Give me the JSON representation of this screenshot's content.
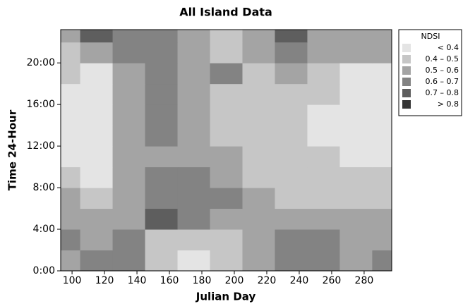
{
  "chart_data": {
    "type": "contour",
    "title": "All Island Data",
    "x_label": "Julian Day",
    "y_label": "Time 24-Hour",
    "xlim": [
      93,
      297
    ],
    "xticks": [
      100,
      120,
      140,
      160,
      180,
      200,
      220,
      240,
      260,
      280
    ],
    "ylim": [
      0,
      23.2
    ],
    "yticks": [
      {
        "value": 0,
        "label": "0:00"
      },
      {
        "value": 4,
        "label": "4:00"
      },
      {
        "value": 8,
        "label": "8:00"
      },
      {
        "value": 12,
        "label": "12:00"
      },
      {
        "value": 16,
        "label": "16:00"
      },
      {
        "value": 20,
        "label": "20:00"
      }
    ],
    "x": [
      95,
      115,
      135,
      155,
      175,
      195,
      215,
      235,
      255,
      275,
      295
    ],
    "y": [
      1,
      3,
      5,
      7,
      9,
      11,
      13,
      15,
      17,
      19,
      21,
      23
    ],
    "z": [
      [
        0.55,
        0.65,
        0.65,
        0.45,
        0.35,
        0.45,
        0.55,
        0.65,
        0.65,
        0.55,
        0.65
      ],
      [
        0.65,
        0.55,
        0.65,
        0.45,
        0.45,
        0.45,
        0.55,
        0.65,
        0.65,
        0.55,
        0.55
      ],
      [
        0.55,
        0.55,
        0.55,
        0.75,
        0.65,
        0.55,
        0.55,
        0.55,
        0.55,
        0.55,
        0.55
      ],
      [
        0.55,
        0.45,
        0.55,
        0.65,
        0.65,
        0.65,
        0.55,
        0.45,
        0.45,
        0.45,
        0.45
      ],
      [
        0.45,
        0.35,
        0.55,
        0.65,
        0.65,
        0.55,
        0.45,
        0.45,
        0.45,
        0.45,
        0.45
      ],
      [
        0.35,
        0.35,
        0.55,
        0.55,
        0.55,
        0.55,
        0.45,
        0.45,
        0.45,
        0.35,
        0.35
      ],
      [
        0.35,
        0.35,
        0.55,
        0.65,
        0.55,
        0.45,
        0.45,
        0.45,
        0.35,
        0.35,
        0.35
      ],
      [
        0.35,
        0.35,
        0.55,
        0.65,
        0.55,
        0.45,
        0.45,
        0.45,
        0.35,
        0.35,
        0.35
      ],
      [
        0.35,
        0.35,
        0.55,
        0.65,
        0.55,
        0.45,
        0.45,
        0.45,
        0.45,
        0.35,
        0.35
      ],
      [
        0.45,
        0.35,
        0.55,
        0.65,
        0.55,
        0.65,
        0.45,
        0.55,
        0.45,
        0.35,
        0.35
      ],
      [
        0.45,
        0.55,
        0.65,
        0.65,
        0.55,
        0.45,
        0.55,
        0.65,
        0.55,
        0.55,
        0.55
      ],
      [
        0.55,
        0.75,
        0.65,
        0.65,
        0.55,
        0.45,
        0.55,
        0.75,
        0.55,
        0.55,
        0.55
      ]
    ],
    "levels": [
      0.4,
      0.5,
      0.6,
      0.7,
      0.8
    ],
    "legend": {
      "title": "NDSI",
      "entries": [
        {
          "label": "<  0.4",
          "color": "#e4e4e4"
        },
        {
          "label": "0.4 –  0.5",
          "color": "#c6c6c6"
        },
        {
          "label": "0.5 –  0.6",
          "color": "#a4a4a4"
        },
        {
          "label": "0.6 –  0.7",
          "color": "#838383"
        },
        {
          "label": "0.7 –  0.8",
          "color": "#5e5e5e"
        },
        {
          "label": ">  0.8",
          "color": "#363636"
        }
      ]
    }
  }
}
